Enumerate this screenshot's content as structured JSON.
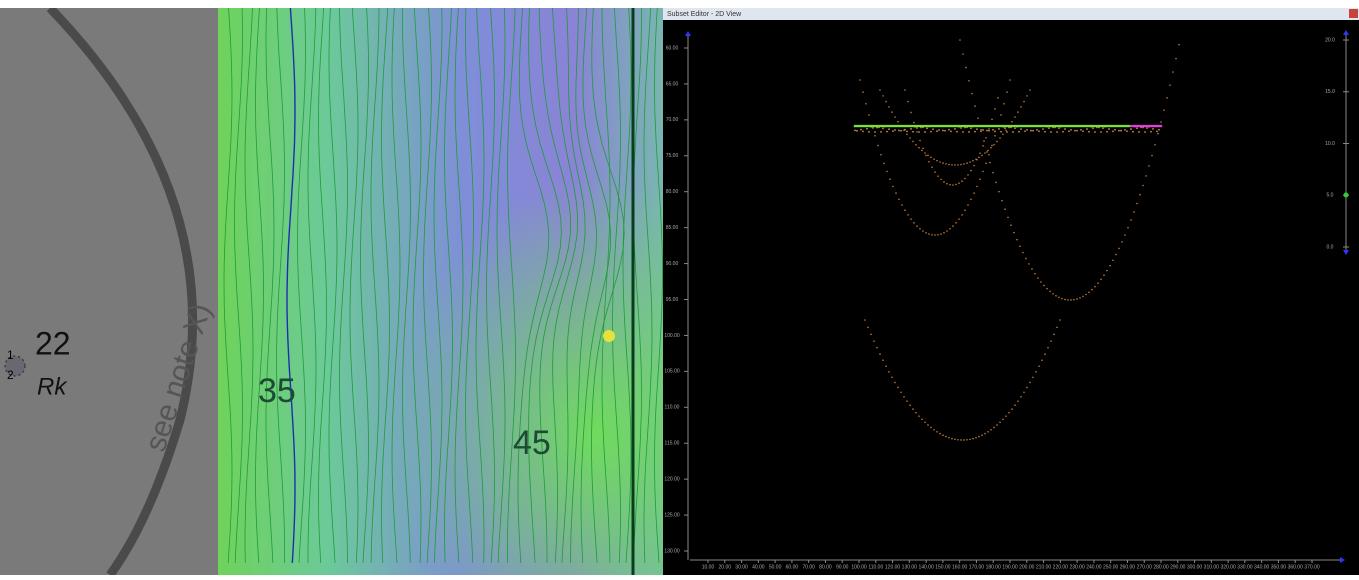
{
  "map": {
    "labels": {
      "depth_22": "22",
      "rock": "Rk",
      "sounding_1": "1",
      "sounding_2": "2",
      "note": "see note X)",
      "contour_35": "35",
      "contour_45": "45"
    }
  },
  "editor": {
    "title": "Subset Editor - 2D View",
    "ylim": [
      60,
      130
    ],
    "xlim": [
      10,
      370
    ],
    "y2lim": [
      0,
      20
    ],
    "yticks": [
      {
        "value": 60,
        "label": "60.00"
      },
      {
        "value": 65,
        "label": "65.00"
      },
      {
        "value": 70,
        "label": "70.00"
      },
      {
        "value": 75,
        "label": "75.00"
      },
      {
        "value": 80,
        "label": "80.00"
      },
      {
        "value": 85,
        "label": "85.00"
      },
      {
        "value": 90,
        "label": "90.00"
      },
      {
        "value": 95,
        "label": "95.00"
      },
      {
        "value": 100,
        "label": "100.00"
      },
      {
        "value": 105,
        "label": "105.00"
      },
      {
        "value": 110,
        "label": "110.00"
      },
      {
        "value": 115,
        "label": "115.00"
      },
      {
        "value": 120,
        "label": "120.00"
      },
      {
        "value": 125,
        "label": "125.00"
      },
      {
        "value": 130,
        "label": "130.00"
      }
    ],
    "xticks": [
      {
        "value": 10,
        "label": "10.00"
      },
      {
        "value": 20,
        "label": "20.00"
      },
      {
        "value": 30,
        "label": "30.00"
      },
      {
        "value": 40,
        "label": "40.00"
      },
      {
        "value": 50,
        "label": "50.00"
      },
      {
        "value": 60,
        "label": "60.00"
      },
      {
        "value": 70,
        "label": "70.00"
      },
      {
        "value": 80,
        "label": "80.00"
      },
      {
        "value": 90,
        "label": "90.00"
      },
      {
        "value": 100,
        "label": "100.00"
      },
      {
        "value": 110,
        "label": "110.00"
      },
      {
        "value": 120,
        "label": "120.00"
      },
      {
        "value": 130,
        "label": "130.00"
      },
      {
        "value": 140,
        "label": "140.00"
      },
      {
        "value": 150,
        "label": "150.00"
      },
      {
        "value": 160,
        "label": "160.00"
      },
      {
        "value": 170,
        "label": "170.00"
      },
      {
        "value": 180,
        "label": "180.00"
      },
      {
        "value": 190,
        "label": "190.00"
      },
      {
        "value": 200,
        "label": "200.00"
      },
      {
        "value": 210,
        "label": "210.00"
      },
      {
        "value": 220,
        "label": "220.00"
      },
      {
        "value": 230,
        "label": "230.00"
      },
      {
        "value": 240,
        "label": "240.00"
      },
      {
        "value": 250,
        "label": "250.00"
      },
      {
        "value": 260,
        "label": "260.00"
      },
      {
        "value": 270,
        "label": "270.00"
      },
      {
        "value": 280,
        "label": "280.00"
      },
      {
        "value": 290,
        "label": "290.00"
      },
      {
        "value": 300,
        "label": "300.00"
      },
      {
        "value": 310,
        "label": "310.00"
      },
      {
        "value": 320,
        "label": "320.00"
      },
      {
        "value": 330,
        "label": "330.00"
      },
      {
        "value": 340,
        "label": "340.00"
      },
      {
        "value": 350,
        "label": "350.00"
      },
      {
        "value": 360,
        "label": "360.00"
      },
      {
        "value": 370,
        "label": "370.00"
      }
    ],
    "y2ticks": [
      {
        "value": 20,
        "label": "20.0"
      },
      {
        "value": 15,
        "label": "15.0"
      },
      {
        "value": 10,
        "label": "10.0"
      },
      {
        "value": 5,
        "label": "5.0"
      },
      {
        "value": 0,
        "label": "0.0"
      }
    ]
  }
}
